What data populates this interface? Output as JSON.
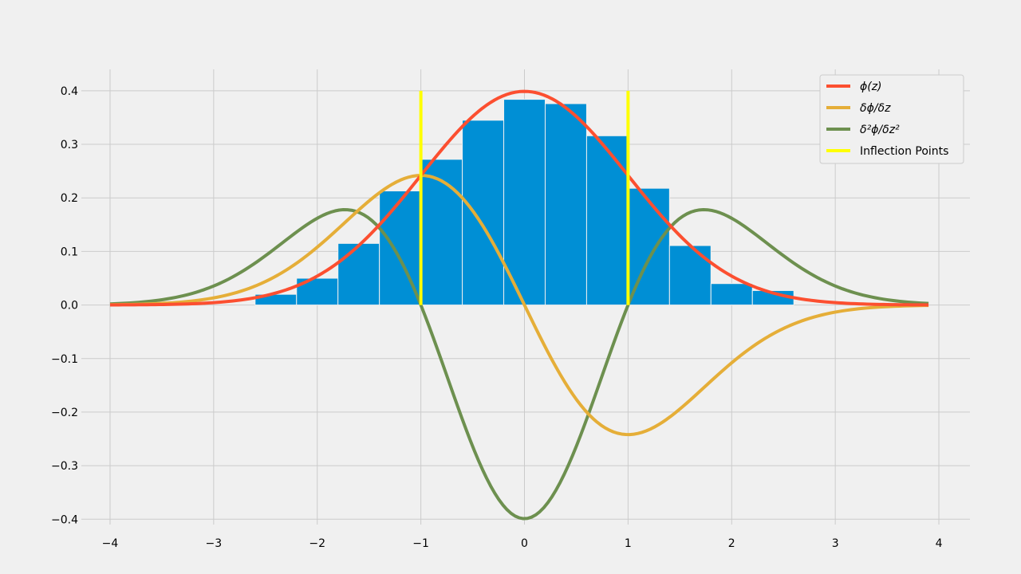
{
  "chart_data": {
    "type": "line",
    "title": "",
    "xlabel": "",
    "ylabel": "",
    "xlim": [
      -4.2,
      4.3
    ],
    "ylim": [
      -0.41,
      0.44
    ],
    "grid": true,
    "legend_location": "top-right",
    "x_ticks": [
      -4,
      -3,
      -2,
      -1,
      0,
      1,
      2,
      3,
      4
    ],
    "x_tick_labels": [
      "−4",
      "−3",
      "−2",
      "−1",
      "0",
      "1",
      "2",
      "3",
      "4"
    ],
    "y_ticks": [
      0.4,
      0.3,
      0.2,
      0.1,
      0.0,
      -0.1,
      -0.2,
      -0.3,
      -0.4
    ],
    "y_tick_labels": [
      "0.4",
      "0.3",
      "0.2",
      "0.1",
      "0.0",
      "−0.1",
      "−0.2",
      "−0.3",
      "−0.4"
    ],
    "colors": {
      "background": "#f0f0f0",
      "grid": "#cbcbcb",
      "histogram": "#008fd5",
      "pdf": "#fc4f30",
      "first_derivative": "#e5ae38",
      "second_derivative": "#6d904f",
      "inflection": "#ffff00"
    },
    "series": [
      {
        "name": "ϕ(z)",
        "function": "pdf",
        "x_range": [
          -4.0,
          3.9
        ],
        "color": "#fc4f30"
      },
      {
        "name": "δϕ/δz",
        "function": "first_derivative",
        "x_range": [
          -4.0,
          3.9
        ],
        "color": "#e5ae38"
      },
      {
        "name": "δ²ϕ/δz²",
        "function": "second_derivative",
        "x_range": [
          -4.0,
          3.9
        ],
        "color": "#6d904f"
      }
    ],
    "inflection_points": {
      "name": "Inflection Points",
      "x": [
        -1,
        1
      ],
      "y_range": [
        0,
        0.4
      ],
      "color": "#ffff00"
    },
    "histogram": {
      "bin_edges": [
        -2.6,
        -2.2,
        -1.8,
        -1.4,
        -1.0,
        -0.6,
        -0.2,
        0.2,
        0.6,
        1.0,
        1.4,
        1.8,
        2.2,
        2.6
      ],
      "values": [
        0.02,
        0.05,
        0.115,
        0.213,
        0.272,
        0.345,
        0.384,
        0.376,
        0.316,
        0.218,
        0.111,
        0.04,
        0.027
      ],
      "color": "#008fd5"
    },
    "legend": [
      {
        "label": "ϕ(z)",
        "color": "#fc4f30"
      },
      {
        "label": "δϕ/δz",
        "color": "#e5ae38"
      },
      {
        "label": "δ²ϕ/δz²",
        "color": "#6d904f"
      },
      {
        "label": "Inflection Points",
        "color": "#ffff00"
      }
    ]
  }
}
